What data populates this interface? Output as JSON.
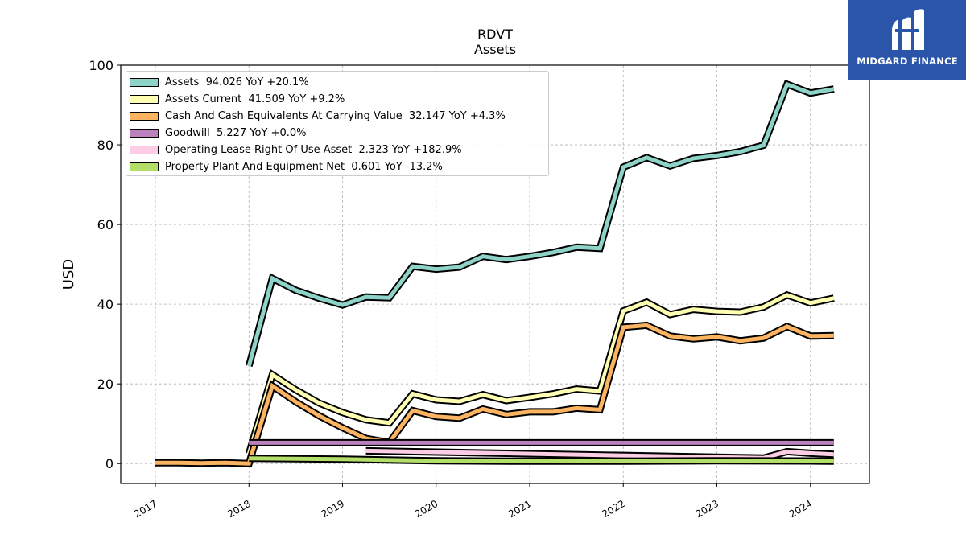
{
  "chart_data": {
    "type": "line",
    "title": "RDVT",
    "subtitle": "Assets",
    "xlabel": "",
    "ylabel": "USD",
    "ylim": [
      -5,
      100
    ],
    "xlim": [
      2016.63,
      2024.63
    ],
    "yticks": [
      "0",
      "20",
      "40",
      "60",
      "80",
      "100"
    ],
    "xticks": [
      "2017",
      "2018",
      "2019",
      "2020",
      "2021",
      "2022",
      "2023",
      "2024"
    ],
    "grid": true,
    "legend_position": "top-left",
    "series": [
      {
        "name": "Assets",
        "legend": "Assets  94.026 YoY +20.1%",
        "color": "#8dd3c7",
        "x": [
          "2018-01-01",
          "2018-04-01",
          "2018-07-01",
          "2018-10-01",
          "2019-01-01",
          "2019-04-01",
          "2019-07-01",
          "2019-10-01",
          "2020-01-01",
          "2020-04-01",
          "2020-07-01",
          "2020-10-01",
          "2021-01-01",
          "2021-04-01",
          "2021-07-01",
          "2021-10-01",
          "2022-01-01",
          "2022-04-01",
          "2022-07-01",
          "2022-10-01",
          "2023-01-01",
          "2023-04-01",
          "2023-07-01",
          "2023-10-01",
          "2024-01-01",
          "2024-04-01"
        ],
        "y": [
          24.5,
          46.5,
          43.5,
          41.5,
          39.8,
          41.8,
          41.6,
          49.5,
          48.8,
          49.3,
          52.0,
          51.2,
          52.0,
          53.0,
          54.3,
          54.0,
          74.4,
          76.8,
          74.7,
          76.6,
          77.3,
          78.3,
          79.9,
          95.2,
          93.0,
          94.0
        ]
      },
      {
        "name": "Assets Current",
        "legend": "Assets Current  41.509 YoY +9.2%",
        "color": "#ffffb3",
        "x": [
          "2018-01-01",
          "2018-04-01",
          "2018-07-01",
          "2018-10-01",
          "2019-01-01",
          "2019-04-01",
          "2019-07-01",
          "2019-10-01",
          "2020-01-01",
          "2020-04-01",
          "2020-07-01",
          "2020-10-01",
          "2021-01-01",
          "2021-04-01",
          "2021-07-01",
          "2021-10-01",
          "2022-01-01",
          "2022-04-01",
          "2022-07-01",
          "2022-10-01",
          "2023-01-01",
          "2023-04-01",
          "2023-07-01",
          "2023-10-01",
          "2024-01-01",
          "2024-04-01"
        ],
        "y": [
          2.5,
          22.3,
          18.5,
          15.2,
          12.8,
          11.0,
          10.2,
          17.5,
          16.0,
          15.6,
          17.3,
          15.8,
          16.6,
          17.5,
          18.7,
          18.2,
          38.3,
          40.5,
          37.4,
          38.7,
          38.2,
          38.0,
          39.3,
          42.3,
          40.3,
          41.5
        ]
      },
      {
        "name": "Cash And Cash Equivalents At Carrying Value",
        "legend": "Cash And Cash Equivalents At Carrying Value  32.147 YoY +4.3%",
        "color": "#fdb462",
        "x": [
          "2017-01-01",
          "2017-04-01",
          "2017-07-01",
          "2017-10-01",
          "2018-01-01",
          "2018-04-01",
          "2018-07-01",
          "2018-10-01",
          "2019-01-01",
          "2019-04-01",
          "2019-07-01",
          "2019-10-01",
          "2020-01-01",
          "2020-04-01",
          "2020-07-01",
          "2020-10-01",
          "2021-01-01",
          "2021-04-01",
          "2021-07-01",
          "2021-10-01",
          "2022-01-01",
          "2022-04-01",
          "2022-07-01",
          "2022-10-01",
          "2023-01-01",
          "2023-04-01",
          "2023-07-01",
          "2023-10-01",
          "2024-01-01",
          "2024-04-01"
        ],
        "y": [
          0.2,
          0.2,
          0.1,
          0.2,
          0.0,
          19.5,
          15.5,
          12.0,
          9.0,
          6.3,
          5.3,
          13.3,
          11.8,
          11.4,
          13.7,
          12.3,
          13.0,
          13.0,
          13.9,
          13.5,
          34.2,
          34.7,
          32.0,
          31.3,
          31.8,
          30.8,
          31.5,
          34.4,
          32.0,
          32.1
        ]
      },
      {
        "name": "Goodwill",
        "legend": "Goodwill  5.227 YoY +0.0%",
        "color": "#bc80bd",
        "x": [
          "2018-01-01",
          "2024-04-01"
        ],
        "y": [
          5.227,
          5.227
        ]
      },
      {
        "name": "Operating Lease Right Of Use Asset",
        "legend": "Operating Lease Right Of Use Asset  2.323 YoY +182.9%",
        "color": "#fccde5",
        "x": [
          "2019-04-01",
          "2023-07-01",
          "2023-10-01",
          "2024-01-01",
          "2024-04-01"
        ],
        "y": [
          3.2,
          1.4,
          3.0,
          2.6,
          2.323
        ]
      },
      {
        "name": "Property Plant And Equipment Net",
        "legend": "Property Plant And Equipment Net  0.601 YoY -13.2%",
        "color": "#b3de69",
        "x": [
          "2018-01-01",
          "2019-01-01",
          "2020-01-01",
          "2021-01-01",
          "2022-01-01",
          "2023-01-01",
          "2024-01-01",
          "2024-04-01"
        ],
        "y": [
          1.3,
          1.1,
          0.7,
          0.6,
          0.6,
          0.7,
          0.65,
          0.601
        ]
      }
    ]
  },
  "logo": {
    "text": "MIDGARD FINANCE"
  }
}
